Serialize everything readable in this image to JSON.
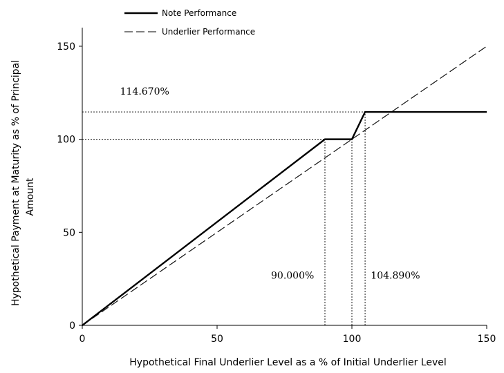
{
  "chart_data": {
    "type": "line",
    "xlabel": "Hypothetical Final Underlier Level as a % of Initial Underlier Level",
    "ylabel_lines": [
      "Hypothetical Payment at Maturity as % of Principal",
      "Amount"
    ],
    "xlim": [
      0,
      150
    ],
    "ylim": [
      0,
      160
    ],
    "x_ticks": [
      0,
      50,
      100,
      150
    ],
    "y_ticks": [
      0,
      50,
      100,
      150
    ],
    "grid": false,
    "legend_position": "top-left",
    "series": [
      {
        "name": "Note Performance",
        "style": "solid",
        "color": "#000000",
        "x": [
          0,
          90,
          100,
          104.89,
          150
        ],
        "y": [
          0,
          100,
          100,
          114.67,
          114.67
        ]
      },
      {
        "name": "Underlier Performance",
        "style": "dashed",
        "color": "#000000",
        "x": [
          0,
          150
        ],
        "y": [
          0,
          150
        ]
      }
    ],
    "reference_lines": {
      "horizontal": [
        {
          "y": 114.67,
          "x_end": 104.89
        },
        {
          "y": 100,
          "x_end": 90
        }
      ],
      "vertical": [
        {
          "x": 90,
          "y_end": 100
        },
        {
          "x": 100,
          "y_end": 100
        },
        {
          "x": 104.89,
          "y_end": 114.67
        }
      ]
    },
    "annotations": [
      {
        "text": "114.670%",
        "x": 14,
        "y": 124
      },
      {
        "text": "90.000%",
        "x": 70,
        "y": 25
      },
      {
        "text": "104.890%",
        "x": 107,
        "y": 25
      }
    ]
  }
}
